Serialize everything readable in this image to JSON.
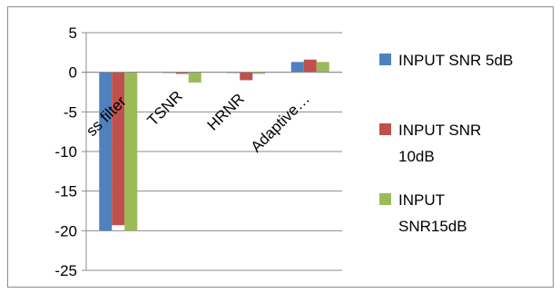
{
  "chart_data": {
    "type": "bar",
    "categories": [
      "ss filter",
      "TSNR",
      "HRNR",
      "Adaptive…"
    ],
    "series": [
      {
        "name": "INPUT SNR 5dB",
        "color": "#4f81bd",
        "values": [
          -20,
          0,
          0,
          1.3
        ]
      },
      {
        "name": "INPUT SNR 10dB",
        "color": "#c0504d",
        "values": [
          -19.3,
          -0.2,
          -1.0,
          1.6
        ]
      },
      {
        "name": "INPUT SNR15dB",
        "color": "#9bbb59",
        "values": [
          -20,
          -1.3,
          -0.2,
          1.3
        ]
      }
    ],
    "yticks": [
      5,
      0,
      -5,
      -10,
      -15,
      -20,
      -25
    ],
    "ylim": [
      -25,
      5
    ],
    "grid": true,
    "legend_position": "right",
    "legend_lines": [
      [
        "INPUT SNR 5dB"
      ],
      [
        "INPUT SNR",
        "10dB"
      ],
      [
        "INPUT",
        "SNR15dB"
      ]
    ]
  }
}
